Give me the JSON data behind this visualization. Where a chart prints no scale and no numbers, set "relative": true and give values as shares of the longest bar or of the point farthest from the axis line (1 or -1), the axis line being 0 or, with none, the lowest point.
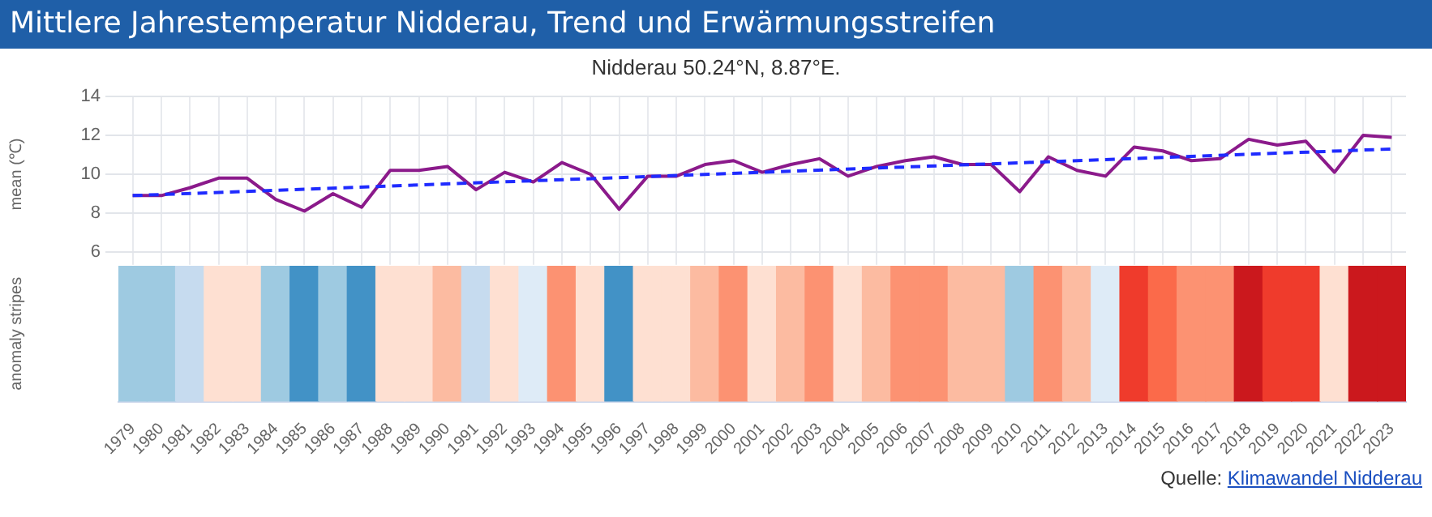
{
  "chart_data": [
    {
      "type": "line",
      "title": "Mittlere Jahrestemperatur Nidderau, Trend und Erwärmungsstreifen",
      "subtitle": "Nidderau 50.24°N, 8.87°E.",
      "ylabel": "mean (℃)",
      "categories": [
        "1979",
        "1980",
        "1981",
        "1982",
        "1983",
        "1984",
        "1985",
        "1986",
        "1987",
        "1988",
        "1989",
        "1990",
        "1991",
        "1992",
        "1993",
        "1994",
        "1995",
        "1996",
        "1997",
        "1998",
        "1999",
        "2000",
        "2001",
        "2002",
        "2003",
        "2004",
        "2005",
        "2006",
        "2007",
        "2008",
        "2009",
        "2010",
        "2011",
        "2012",
        "2013",
        "2014",
        "2015",
        "2016",
        "2017",
        "2018",
        "2019",
        "2020",
        "2021",
        "2022",
        "2023"
      ],
      "series": [
        {
          "color": "#8b1a8b",
          "values": [
            8.9,
            8.9,
            9.3,
            9.8,
            9.8,
            8.7,
            8.1,
            9.0,
            8.3,
            10.2,
            10.2,
            10.4,
            9.2,
            10.1,
            9.6,
            10.6,
            10.0,
            8.2,
            9.9,
            9.9,
            10.5,
            10.7,
            10.1,
            10.5,
            10.8,
            9.9,
            10.4,
            10.7,
            10.9,
            10.5,
            10.5,
            9.1,
            10.9,
            10.2,
            9.9,
            11.4,
            11.2,
            10.7,
            10.8,
            11.8,
            11.5,
            11.7,
            10.1,
            12.0,
            11.9
          ]
        },
        {
          "type": "line",
          "color": "#1f2bff",
          "line_style": "dashed",
          "values": [
            8.9,
            null,
            null,
            null,
            null,
            null,
            null,
            null,
            null,
            null,
            null,
            null,
            null,
            null,
            null,
            null,
            null,
            null,
            null,
            null,
            null,
            null,
            null,
            null,
            null,
            null,
            null,
            null,
            null,
            null,
            null,
            null,
            null,
            null,
            null,
            null,
            null,
            null,
            null,
            null,
            null,
            null,
            null,
            null,
            11.3
          ]
        }
      ],
      "ylim": [
        6,
        14
      ],
      "yticks": [
        6,
        8,
        10,
        12,
        14
      ],
      "grid": true,
      "marker": "none",
      "tick_labels": "y"
    },
    {
      "type": "bar",
      "ylabel": "anomaly stripes",
      "relative": true,
      "categories": [
        "1979",
        "1980",
        "1981",
        "1982",
        "1983",
        "1984",
        "1985",
        "1986",
        "1987",
        "1988",
        "1989",
        "1990",
        "1991",
        "1992",
        "1993",
        "1994",
        "1995",
        "1996",
        "1997",
        "1998",
        "1999",
        "2000",
        "2001",
        "2002",
        "2003",
        "2004",
        "2005",
        "2006",
        "2007",
        "2008",
        "2009",
        "2010",
        "2011",
        "2012",
        "2013",
        "2014",
        "2015",
        "2016",
        "2017",
        "2018",
        "2019",
        "2020",
        "2021",
        "2022",
        "2023"
      ],
      "values": [
        1,
        1,
        1,
        1,
        1,
        1,
        1,
        1,
        1,
        1,
        1,
        1,
        1,
        1,
        1,
        1,
        1,
        1,
        1,
        1,
        1,
        1,
        1,
        1,
        1,
        1,
        1,
        1,
        1,
        1,
        1,
        1,
        1,
        1,
        1,
        1,
        1,
        1,
        1,
        1,
        1,
        1,
        1,
        1,
        1
      ],
      "colors": [
        "#9ecae1",
        "#9ecae1",
        "#c6dbef",
        "#fee0d2",
        "#fee0d2",
        "#9ecae1",
        "#4292c6",
        "#9ecae1",
        "#4292c6",
        "#fee0d2",
        "#fee0d2",
        "#fcbba1",
        "#c6dbef",
        "#fee0d2",
        "#deebf7",
        "#fc9272",
        "#fee0d2",
        "#4292c6",
        "#fee0d2",
        "#fee0d2",
        "#fcbba1",
        "#fc9272",
        "#fee0d2",
        "#fcbba1",
        "#fc9272",
        "#fee0d2",
        "#fcbba1",
        "#fc9272",
        "#fc9272",
        "#fcbba1",
        "#fcbba1",
        "#9ecae1",
        "#fc9272",
        "#fcbba1",
        "#deebf7",
        "#ef3b2c",
        "#fb6a4a",
        "#fc9272",
        "#fc9272",
        "#cb181d",
        "#ef3b2c",
        "#ef3b2c",
        "#fee0d2",
        "#cb181d",
        "#cb181d"
      ],
      "annotations": [
        "Quelle: Klimawandel Nidderau"
      ]
    }
  ]
}
